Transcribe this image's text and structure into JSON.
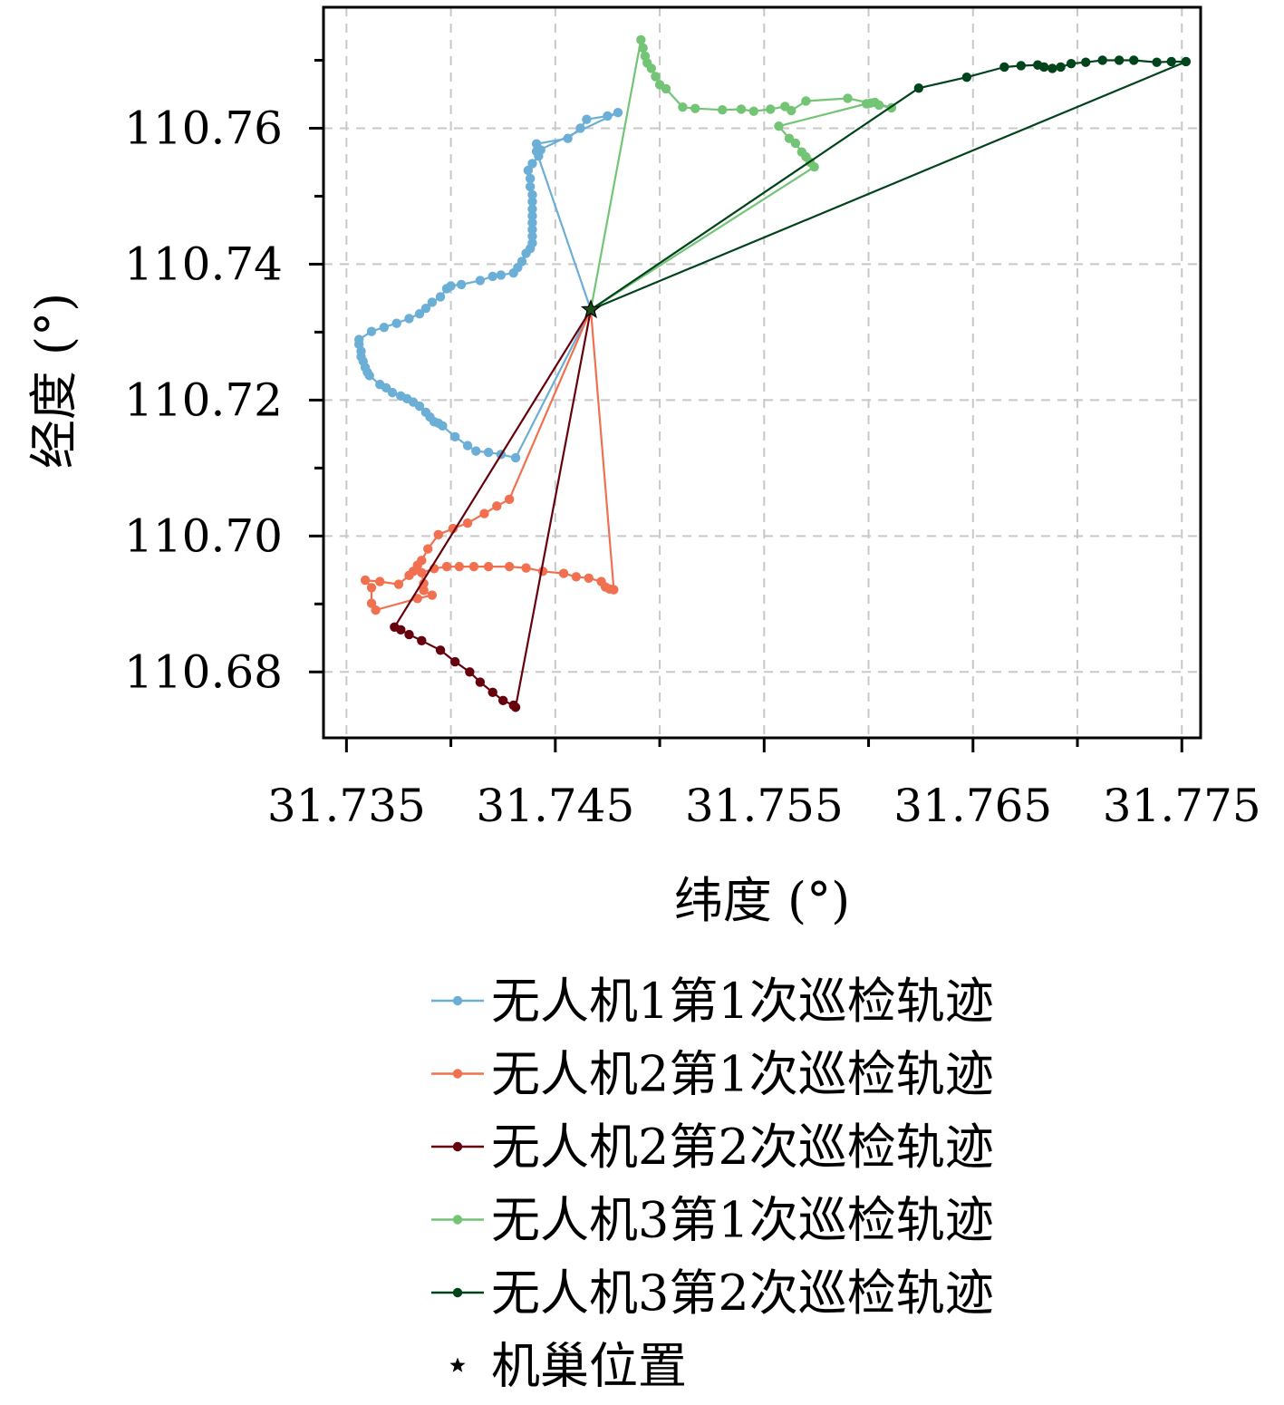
{
  "chart_data": {
    "type": "line",
    "xlabel": "纬度 (°)",
    "ylabel": "经度 (°)",
    "xlim": [
      31.7339,
      31.7759
    ],
    "ylim": [
      110.6703,
      110.7778
    ],
    "xticks": [
      31.735,
      31.745,
      31.755,
      31.765,
      31.775
    ],
    "xtick_labels": [
      "31.735",
      "31.745",
      "31.755",
      "31.765",
      "31.775"
    ],
    "yticks": [
      110.68,
      110.7,
      110.72,
      110.74,
      110.76
    ],
    "ytick_labels": [
      "110.68",
      "110.70",
      "110.72",
      "110.74",
      "110.76"
    ],
    "grid": true,
    "grid_style": "dashed",
    "legend_position": "below",
    "series": [
      {
        "name": "无人机1第1次巡检轨迹",
        "color": "#6baed6",
        "points": [
          [
            31.7467,
            110.7333
          ],
          [
            31.7431,
            110.7115
          ],
          [
            31.7424,
            110.712
          ],
          [
            31.7418,
            110.7123
          ],
          [
            31.7412,
            110.7125
          ],
          [
            31.7408,
            110.7133
          ],
          [
            31.7402,
            110.7146
          ],
          [
            31.7396,
            110.7162
          ],
          [
            31.7394,
            110.7166
          ],
          [
            31.7392,
            110.7168
          ],
          [
            31.739,
            110.7175
          ],
          [
            31.7388,
            110.7182
          ],
          [
            31.7385,
            110.7191
          ],
          [
            31.7382,
            110.7197
          ],
          [
            31.7379,
            110.7202
          ],
          [
            31.7376,
            110.7206
          ],
          [
            31.7372,
            110.7211
          ],
          [
            31.7369,
            110.7218
          ],
          [
            31.7366,
            110.7223
          ],
          [
            31.7361,
            110.7236
          ],
          [
            31.736,
            110.7241
          ],
          [
            31.7359,
            110.7248
          ],
          [
            31.7358,
            110.7257
          ],
          [
            31.7357,
            110.7264
          ],
          [
            31.7357,
            110.7272
          ],
          [
            31.7356,
            110.7282
          ],
          [
            31.7356,
            110.7289
          ],
          [
            31.7362,
            110.7301
          ],
          [
            31.7368,
            110.7307
          ],
          [
            31.7374,
            110.7313
          ],
          [
            31.738,
            110.732
          ],
          [
            31.7385,
            110.7327
          ],
          [
            31.7388,
            110.7335
          ],
          [
            31.7391,
            110.7344
          ],
          [
            31.7395,
            110.7352
          ],
          [
            31.7398,
            110.7364
          ],
          [
            31.74,
            110.7368
          ],
          [
            31.7405,
            110.737
          ],
          [
            31.7414,
            110.7376
          ],
          [
            31.742,
            110.7382
          ],
          [
            31.7424,
            110.7384
          ],
          [
            31.743,
            110.7387
          ],
          [
            31.7432,
            110.7395
          ],
          [
            31.7434,
            110.7404
          ],
          [
            31.7436,
            110.7416
          ],
          [
            31.7438,
            110.7423
          ],
          [
            31.7439,
            110.7431
          ],
          [
            31.7439,
            110.7441
          ],
          [
            31.7439,
            110.7451
          ],
          [
            31.7439,
            110.7461
          ],
          [
            31.7439,
            110.7471
          ],
          [
            31.7439,
            110.7481
          ],
          [
            31.7439,
            110.7492
          ],
          [
            31.7439,
            110.7502
          ],
          [
            31.7438,
            110.7514
          ],
          [
            31.7438,
            110.7526
          ],
          [
            31.7437,
            110.7538
          ],
          [
            31.7439,
            110.7548
          ],
          [
            31.7442,
            110.7559
          ],
          [
            31.7443,
            110.7568
          ],
          [
            31.7441,
            110.7577
          ],
          [
            31.7456,
            110.7585
          ],
          [
            31.7462,
            110.76
          ],
          [
            31.7465,
            110.7613
          ],
          [
            31.7475,
            110.7618
          ],
          [
            31.748,
            110.7623
          ],
          [
            31.7441,
            110.7566
          ],
          [
            31.7467,
            110.7333
          ]
        ]
      },
      {
        "name": "无人机2第1次巡检轨迹",
        "color": "#f0704f",
        "points": [
          [
            31.7467,
            110.7333
          ],
          [
            31.7428,
            110.7054
          ],
          [
            31.7422,
            110.7044
          ],
          [
            31.7416,
            110.7033
          ],
          [
            31.7408,
            110.7019
          ],
          [
            31.7401,
            110.7011
          ],
          [
            31.7394,
            110.7002
          ],
          [
            31.7389,
            110.6981
          ],
          [
            31.7386,
            110.6964
          ],
          [
            31.7384,
            110.6957
          ],
          [
            31.7382,
            110.6948
          ],
          [
            31.738,
            110.6942
          ],
          [
            31.7375,
            110.6929
          ],
          [
            31.7366,
            110.6933
          ],
          [
            31.7359,
            110.6935
          ],
          [
            31.7362,
            110.6924
          ],
          [
            31.7362,
            110.6901
          ],
          [
            31.7364,
            110.6891
          ],
          [
            31.7384,
            110.6908
          ],
          [
            31.7391,
            110.6913
          ],
          [
            31.7387,
            110.692
          ],
          [
            31.7387,
            110.693
          ],
          [
            31.7386,
            110.6946
          ],
          [
            31.7392,
            110.6952
          ],
          [
            31.7398,
            110.6955
          ],
          [
            31.7404,
            110.6955
          ],
          [
            31.7411,
            110.6955
          ],
          [
            31.7418,
            110.6955
          ],
          [
            31.7428,
            110.6955
          ],
          [
            31.7436,
            110.6953
          ],
          [
            31.7444,
            110.6948
          ],
          [
            31.7454,
            110.6945
          ],
          [
            31.746,
            110.694
          ],
          [
            31.7466,
            110.6938
          ],
          [
            31.7472,
            110.6933
          ],
          [
            31.7474,
            110.6925
          ],
          [
            31.7476,
            110.6922
          ],
          [
            31.7478,
            110.6921
          ],
          [
            31.7467,
            110.7333
          ]
        ]
      },
      {
        "name": "无人机2第2次巡检轨迹",
        "color": "#67000d",
        "points": [
          [
            31.7467,
            110.7333
          ],
          [
            31.7373,
            110.6866
          ],
          [
            31.7376,
            110.6862
          ],
          [
            31.738,
            110.6855
          ],
          [
            31.7386,
            110.6846
          ],
          [
            31.7395,
            110.6832
          ],
          [
            31.7402,
            110.6815
          ],
          [
            31.7409,
            110.68
          ],
          [
            31.7414,
            110.6785
          ],
          [
            31.742,
            110.677
          ],
          [
            31.7425,
            110.6758
          ],
          [
            31.743,
            110.6751
          ],
          [
            31.7431,
            110.6748
          ],
          [
            31.7467,
            110.7333
          ]
        ]
      },
      {
        "name": "无人机3第1次巡检轨迹",
        "color": "#74c476",
        "points": [
          [
            31.7467,
            110.7333
          ],
          [
            31.7491,
            110.773
          ],
          [
            31.7492,
            110.7718
          ],
          [
            31.7493,
            110.7706
          ],
          [
            31.7494,
            110.7696
          ],
          [
            31.7496,
            110.7688
          ],
          [
            31.7498,
            110.7676
          ],
          [
            31.75,
            110.7664
          ],
          [
            31.7503,
            110.7658
          ],
          [
            31.7511,
            110.7631
          ],
          [
            31.7517,
            110.7629
          ],
          [
            31.753,
            110.7627
          ],
          [
            31.7539,
            110.7628
          ],
          [
            31.7545,
            110.7625
          ],
          [
            31.7553,
            110.7628
          ],
          [
            31.756,
            110.7632
          ],
          [
            31.7563,
            110.7626
          ],
          [
            31.757,
            110.764
          ],
          [
            31.759,
            110.7644
          ],
          [
            31.7601,
            110.7637
          ],
          [
            31.7603,
            110.7638
          ],
          [
            31.7611,
            110.763
          ],
          [
            31.7605,
            110.7634
          ],
          [
            31.7599,
            110.7636
          ],
          [
            31.7557,
            110.7603
          ],
          [
            31.7562,
            110.7585
          ],
          [
            31.7565,
            110.7578
          ],
          [
            31.7568,
            110.7565
          ],
          [
            31.757,
            110.7558
          ],
          [
            31.7572,
            110.755
          ],
          [
            31.7574,
            110.7543
          ],
          [
            31.7467,
            110.7333
          ]
        ]
      },
      {
        "name": "无人机3第2次巡检轨迹",
        "color": "#00441b",
        "points": [
          [
            31.7467,
            110.7333
          ],
          [
            31.7624,
            110.7659
          ],
          [
            31.7647,
            110.7675
          ],
          [
            31.7665,
            110.769
          ],
          [
            31.7673,
            110.7692
          ],
          [
            31.7681,
            110.7693
          ],
          [
            31.7684,
            110.769
          ],
          [
            31.7688,
            110.7688
          ],
          [
            31.7692,
            110.769
          ],
          [
            31.7697,
            110.7695
          ],
          [
            31.7704,
            110.7697
          ],
          [
            31.7712,
            110.77
          ],
          [
            31.772,
            110.77
          ],
          [
            31.7727,
            110.77
          ],
          [
            31.7738,
            110.7697
          ],
          [
            31.7745,
            110.7698
          ],
          [
            31.7752,
            110.7698
          ],
          [
            31.7467,
            110.7333
          ]
        ]
      }
    ],
    "markers": [
      {
        "name": "机巢位置",
        "x": 31.7467,
        "y": 110.7333,
        "symbol": "star",
        "color": "#000000"
      }
    ]
  }
}
